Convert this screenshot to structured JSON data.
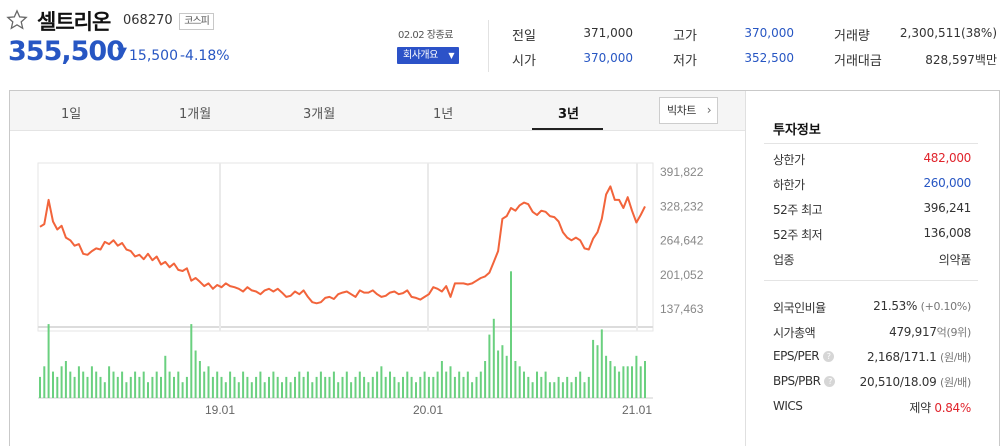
{
  "header": {
    "stock_name": "셀트리온",
    "stock_code": "068270",
    "market": "코스피",
    "price": "355,500",
    "change_arrow": "▼",
    "change_value": "15,500",
    "change_percent": "-4.18%",
    "date_status": "02.02 장종료",
    "company_button": "회사개요",
    "colors": {
      "down": "#2756c3",
      "up": "#e0242c",
      "accent": "#2c52c8"
    }
  },
  "quote": {
    "prev_close_label": "전일",
    "prev_close": "371,000",
    "open_label": "시가",
    "open": "370,000",
    "high_label": "고가",
    "high": "370,000",
    "low_label": "저가",
    "low": "352,500",
    "volume_label": "거래량",
    "volume": "2,300,511(38%)",
    "amount_label": "거래대금",
    "amount": "828,597백만"
  },
  "tabs": [
    {
      "label": "1일",
      "active": false
    },
    {
      "label": "1개월",
      "active": false
    },
    {
      "label": "3개월",
      "active": false
    },
    {
      "label": "1년",
      "active": false
    },
    {
      "label": "3년",
      "active": true
    }
  ],
  "candle_button": "빅차트",
  "candle_icon": "chevron-right-icon",
  "chart_data": {
    "type": "line",
    "y_ticks": [
      "391,822",
      "328,232",
      "264,642",
      "201,052",
      "137,463"
    ],
    "y_tick_values": [
      391822,
      328232,
      264642,
      201052,
      137463
    ],
    "x_ticks": [
      "19.01",
      "20.01",
      "21.01"
    ],
    "line_color": "#f2643b",
    "bar_color": "#6ad07f",
    "series": [
      {
        "values": [
          290000,
          295000,
          340000,
          300000,
          285000,
          292000,
          270000,
          265000,
          255000,
          258000,
          240000,
          238000,
          245000,
          250000,
          248000,
          262000,
          258000,
          265000,
          255000,
          260000,
          248000,
          245000,
          235000,
          238000,
          230000,
          240000,
          228000,
          235000,
          220000,
          225000,
          215000,
          222000,
          210000,
          208000,
          213000,
          190000,
          195000,
          188000,
          180000,
          185000,
          175000,
          182000,
          178000,
          185000,
          180000,
          178000,
          175000,
          170000,
          178000,
          172000,
          170000,
          165000,
          172000,
          175000,
          170000,
          175000,
          168000,
          160000,
          162000,
          170000,
          165000,
          172000,
          160000,
          150000,
          148000,
          150000,
          158000,
          160000,
          156000,
          165000,
          168000,
          170000,
          165000,
          160000,
          172000,
          168000,
          168000,
          172000,
          165000,
          160000,
          162000,
          168000,
          170000,
          165000,
          167000,
          172000,
          160000,
          158000,
          155000,
          160000,
          165000,
          178000,
          175000,
          170000,
          180000,
          160000,
          185000,
          185000,
          185000,
          183000,
          185000,
          190000,
          195000,
          198000,
          205000,
          225000,
          245000,
          305000,
          310000,
          325000,
          320000,
          330000,
          335000,
          332000,
          318000,
          312000,
          320000,
          318000,
          310000,
          308000,
          300000,
          280000,
          270000,
          265000,
          270000,
          265000,
          250000,
          248000,
          268000,
          280000,
          305000,
          350000,
          365000,
          340000,
          340000,
          325000,
          345000,
          320000,
          298000,
          312000,
          328000
        ]
      },
      {
        "name": "volume",
        "values": [
          4,
          6,
          14,
          5,
          4,
          6,
          7,
          5,
          4,
          6,
          5,
          4,
          6,
          5,
          4,
          3,
          6,
          5,
          4,
          5,
          3,
          4,
          5,
          4,
          5,
          3,
          4,
          5,
          4,
          8,
          5,
          4,
          5,
          3,
          4,
          14,
          9,
          7,
          5,
          6,
          4,
          5,
          4,
          3,
          5,
          4,
          3,
          5,
          4,
          3,
          4,
          5,
          3,
          4,
          5,
          4,
          3,
          4,
          3,
          4,
          5,
          4,
          5,
          3,
          4,
          5,
          4,
          4,
          5,
          3,
          4,
          5,
          3,
          4,
          5,
          4,
          3,
          4,
          5,
          6,
          4,
          5,
          4,
          3,
          4,
          5,
          4,
          3,
          4,
          5,
          4,
          4,
          5,
          7,
          5,
          6,
          4,
          5,
          4,
          5,
          3,
          4,
          5,
          7,
          12,
          15,
          9,
          10,
          8,
          24,
          7,
          6,
          5,
          4,
          3,
          5,
          4,
          5,
          3,
          3,
          4,
          3,
          4,
          3,
          4,
          5,
          3,
          4,
          11,
          10,
          13,
          8,
          7,
          6,
          5,
          6,
          6,
          6,
          8,
          6,
          7
        ]
      }
    ]
  },
  "invest_info": {
    "title": "투자정보",
    "upper_limit_label": "상한가",
    "upper_limit": "482,000",
    "lower_limit_label": "하한가",
    "lower_limit": "260,000",
    "week52_high_label": "52주 최고",
    "week52_high": "396,241",
    "week52_low_label": "52주 최저",
    "week52_low": "136,008",
    "industry_label": "업종",
    "industry": "의약품",
    "foreign_ratio_label": "외국인비율",
    "foreign_ratio": "21.53%",
    "foreign_ratio_change": "(+0.10%)",
    "market_cap_label": "시가총액",
    "market_cap": "479,917",
    "market_cap_unit": "억(9위)",
    "eps_per_label": "EPS/PER",
    "eps_per": "2,168/171.1",
    "eps_per_unit": "(원/배)",
    "bps_pbr_label": "BPS/PBR",
    "bps_pbr": "20,510/18.09",
    "bps_pbr_unit": "(원/배)",
    "help_icon": "question-icon",
    "wics_label": "WICS",
    "wics_sector": "제약",
    "wics_change": "0.84%"
  }
}
